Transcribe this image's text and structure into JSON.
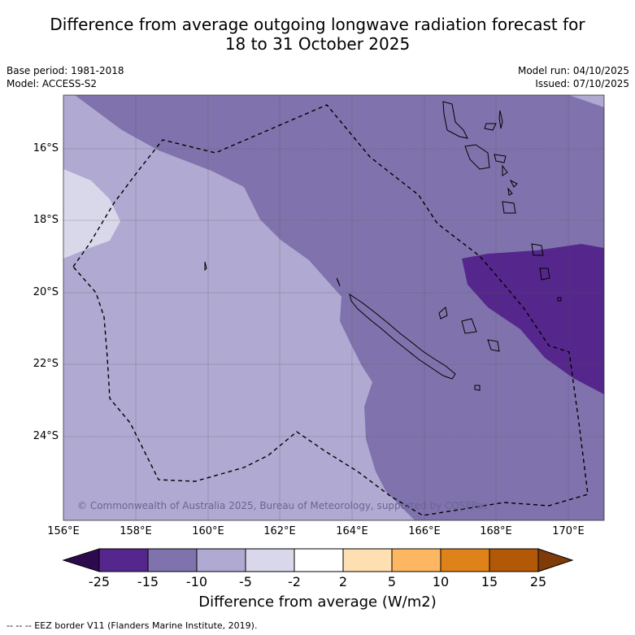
{
  "title": {
    "line1": "Difference from average outgoing longwave radiation forecast for",
    "line2": "18 to 31 October 2025"
  },
  "meta": {
    "base_period": "Base period: 1981-2018",
    "model": "Model: ACCESS-S2",
    "model_run": "Model run: 04/10/2025",
    "issued": "Issued: 07/10/2025"
  },
  "map": {
    "latitude_labels": [
      "16°S",
      "18°S",
      "20°S",
      "22°S",
      "24°S"
    ],
    "longitude_labels": [
      "156°E",
      "158°E",
      "160°E",
      "162°E",
      "164°E",
      "166°E",
      "168°E",
      "170°E"
    ],
    "copyright": "© Commonwealth of Australia 2025, Bureau of Meteorology, supported by COSPPac",
    "colors": {
      "band_-15_-10": "#8073ad",
      "band_-10_-5": "#b0aad2",
      "band_-5_-2": "#d8d8ea",
      "band_-25_-15": "#55278c"
    }
  },
  "colorbar": {
    "title": "Difference from average (W/m2)",
    "tick_labels": [
      "-25",
      "-15",
      "-10",
      "-5",
      "-2",
      "2",
      "5",
      "10",
      "15",
      "25"
    ],
    "colors": [
      "#2d0a4e",
      "#55278c",
      "#8073ad",
      "#b0aad2",
      "#d8d8ea",
      "#ffffff",
      "#fedfb2",
      "#fdb762",
      "#e0821a",
      "#b35807",
      "#7f3b08"
    ]
  },
  "footnote": "-- -- -- EEZ border V11 (Flanders Marine Institute, 2019)."
}
